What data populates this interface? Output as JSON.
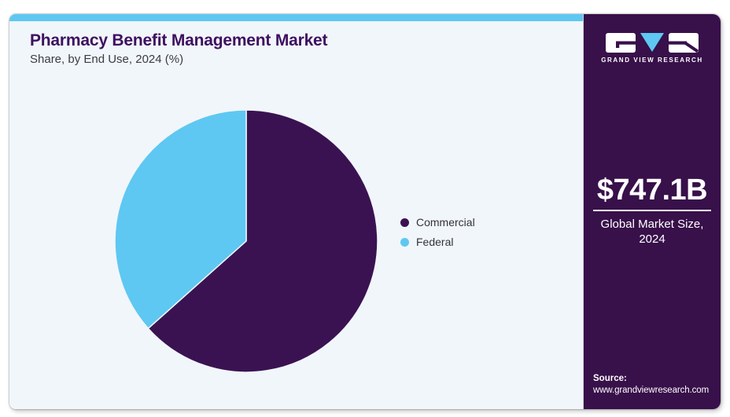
{
  "header": {
    "title": "Pharmacy Benefit Management Market",
    "subtitle": "Share, by End Use, 2024 (%)"
  },
  "chart_data": {
    "type": "pie",
    "categories": [
      "Commercial",
      "Federal"
    ],
    "values": [
      63.4,
      36.6
    ],
    "colors": [
      "#3a1252",
      "#5ec8f2"
    ],
    "title": "Pharmacy Benefit Management Market",
    "subtitle": "Share, by End Use, 2024 (%)",
    "unit": "%",
    "start_angle_deg": 0,
    "direction": "clockwise",
    "legend_position": "right",
    "data_labels": false
  },
  "sidebar": {
    "logo": {
      "brand": "GRAND VIEW RESEARCH",
      "triangle_icon_color": "#5ec8f2"
    },
    "market_size_value": "$747.1B",
    "market_size_label": "Global Market Size, 2024",
    "source_label": "Source:",
    "source_url": "www.grandviewresearch.com"
  },
  "colors": {
    "accent_cyan": "#5ec8f2",
    "panel_bg": "#f1f6fa",
    "sidebar_purple": "#38104a",
    "title_purple": "#3e1060",
    "pie_commercial": "#3a1252",
    "pie_federal": "#5ec8f2"
  }
}
